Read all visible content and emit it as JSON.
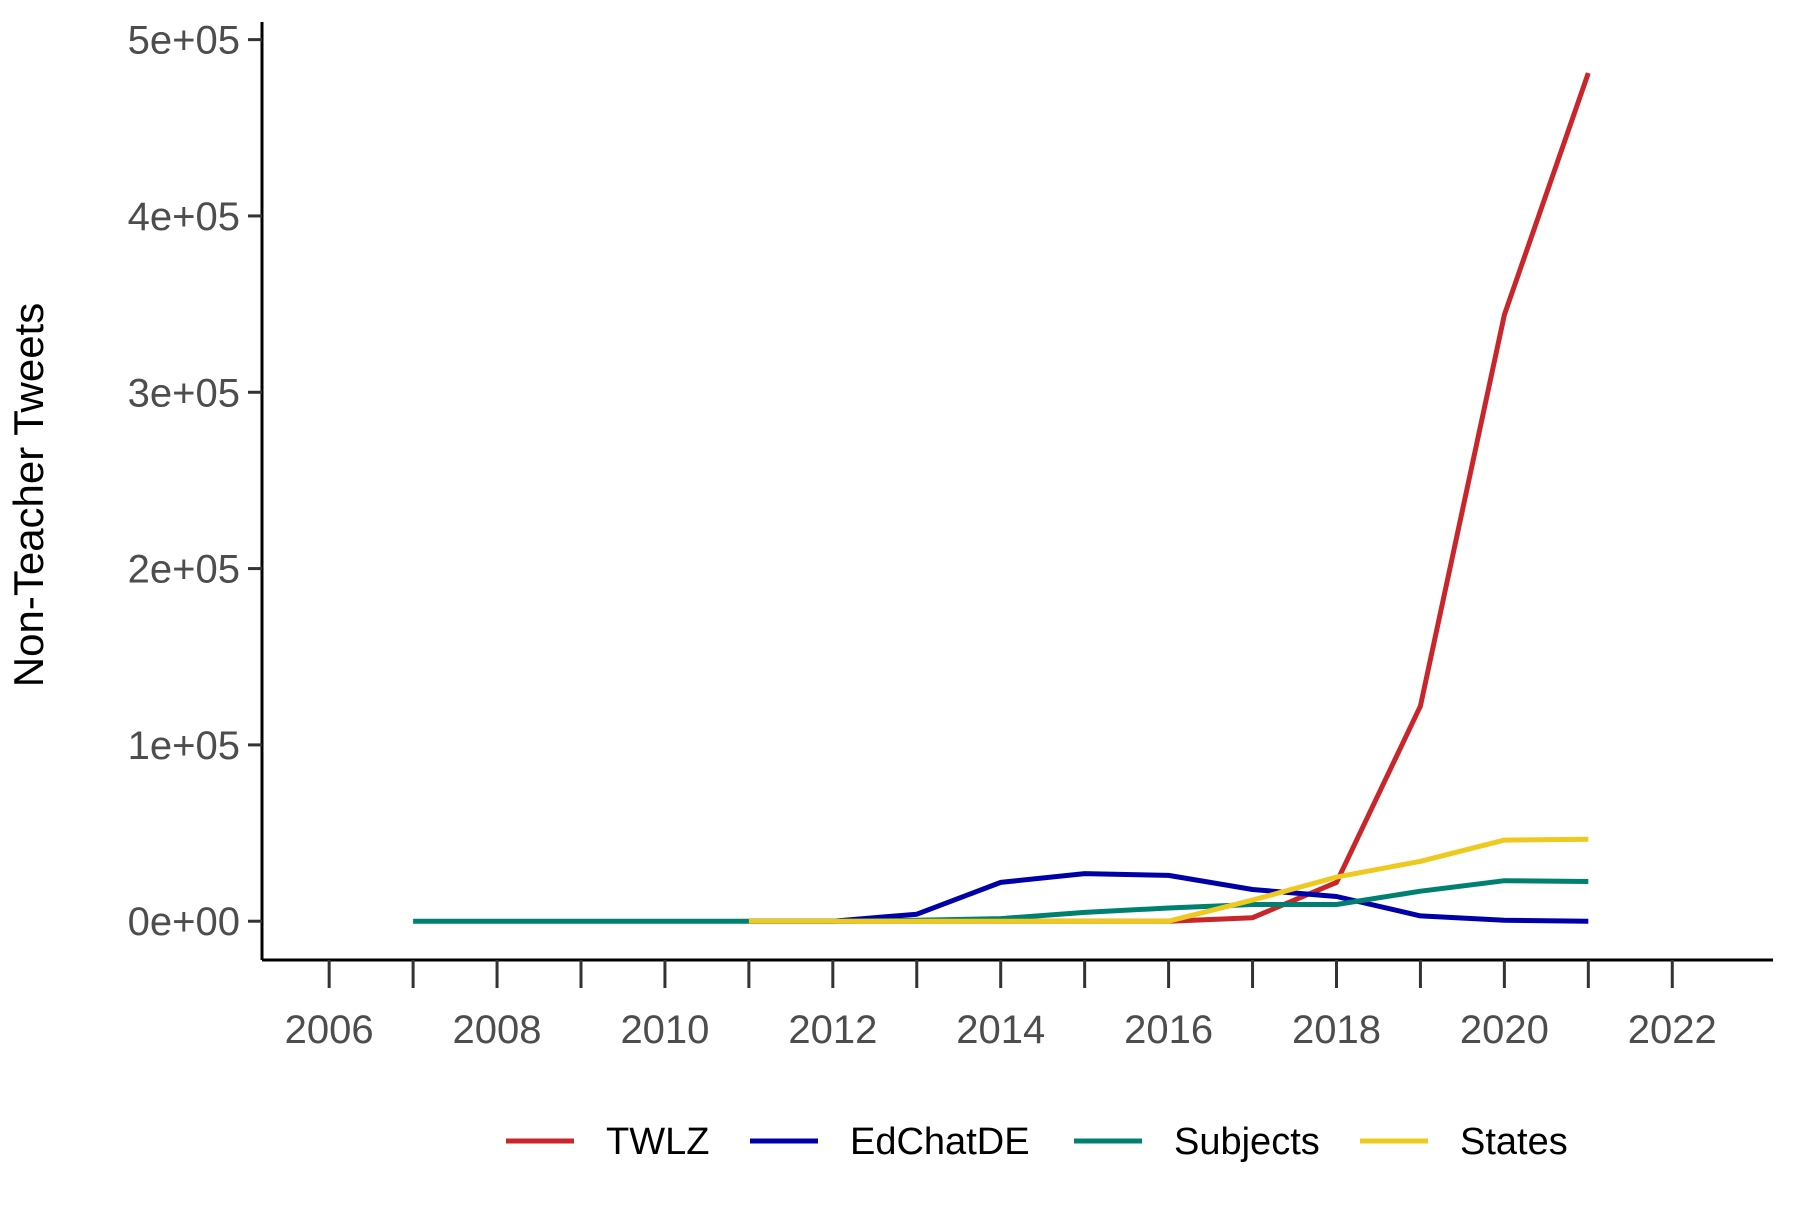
{
  "chart_data": {
    "type": "line",
    "title": "",
    "xlabel": "",
    "ylabel": "Non-Teacher Tweets",
    "xlim": [
      2005.2,
      2023.2
    ],
    "ylim": [
      -22000,
      510000
    ],
    "x_ticks": [
      2006,
      2008,
      2010,
      2012,
      2014,
      2016,
      2018,
      2020,
      2022
    ],
    "x_tick_labels": [
      "2006",
      "2008",
      "2010",
      "2012",
      "2014",
      "2016",
      "2018",
      "2020",
      "2022"
    ],
    "x_minor_ticks": [
      2007,
      2009,
      2011,
      2013,
      2015,
      2017,
      2019,
      2021
    ],
    "y_ticks": [
      0,
      100000,
      200000,
      300000,
      400000,
      500000
    ],
    "y_tick_labels": [
      "0e+00",
      "1e+05",
      "2e+05",
      "3e+05",
      "4e+05",
      "5e+05"
    ],
    "grid": false,
    "legend_position": "bottom",
    "series": [
      {
        "name": "TWLZ",
        "color": "#C8262B",
        "x": [
          2011,
          2012,
          2013,
          2014,
          2015,
          2016,
          2017,
          2018,
          2019,
          2020,
          2021
        ],
        "values": [
          0,
          0,
          0,
          0,
          0,
          0,
          2000,
          22000,
          122000,
          344000,
          481000
        ]
      },
      {
        "name": "EdChatDE",
        "color": "#0000A8",
        "x": [
          2011,
          2012,
          2013,
          2014,
          2015,
          2016,
          2017,
          2018,
          2019,
          2020,
          2021
        ],
        "values": [
          0,
          0,
          4000,
          22000,
          27000,
          26000,
          18000,
          14000,
          3000,
          500,
          0
        ]
      },
      {
        "name": "Subjects",
        "color": "#008070",
        "x": [
          2007,
          2008,
          2009,
          2010,
          2011,
          2012,
          2013,
          2014,
          2015,
          2016,
          2017,
          2018,
          2019,
          2020,
          2021
        ],
        "values": [
          0,
          0,
          0,
          0,
          0,
          0,
          500,
          1500,
          5000,
          7500,
          9500,
          9500,
          17000,
          23000,
          22500
        ]
      },
      {
        "name": "States",
        "color": "#EEC91E",
        "x": [
          2011,
          2012,
          2013,
          2014,
          2015,
          2016,
          2017,
          2018,
          2019,
          2020,
          2021
        ],
        "values": [
          0,
          0,
          0,
          0,
          0,
          0,
          12000,
          25000,
          34000,
          46000,
          46500
        ]
      }
    ]
  }
}
